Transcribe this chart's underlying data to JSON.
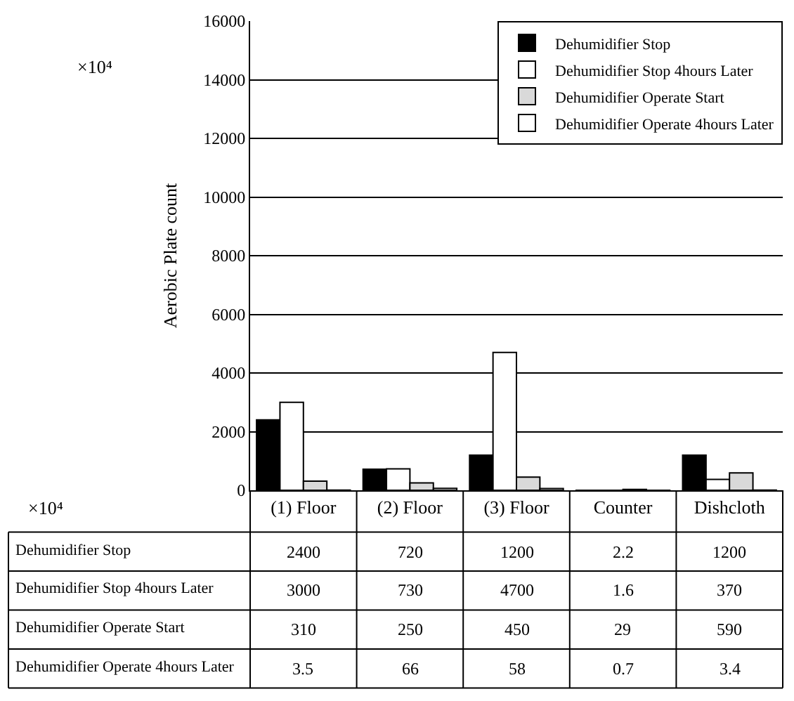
{
  "chart_data": {
    "type": "bar",
    "ylabel": "Aerobic Plate count",
    "annotations": [
      "×10⁴",
      "×10⁴"
    ],
    "categories": [
      "(1) Floor",
      "(2) Floor",
      "(3) Floor",
      "Counter",
      "Dishcloth"
    ],
    "series": [
      {
        "name": "Dehumidifier Stop",
        "color": "#000000",
        "values": [
          2400,
          720,
          1200,
          2.2,
          1200
        ]
      },
      {
        "name": "Dehumidifier Stop 4hours Later",
        "color": "#ffffff",
        "values": [
          3000,
          730,
          4700,
          1.6,
          370
        ]
      },
      {
        "name": "Dehumidifier Operate Start",
        "color": "#d9d9d9",
        "values": [
          310,
          250,
          450,
          29,
          590
        ]
      },
      {
        "name": "Dehumidifier Operate 4hours Later",
        "color": "#ffffff",
        "values": [
          3.5,
          66,
          58,
          0.7,
          3.4
        ]
      }
    ],
    "ylim": [
      0,
      16000
    ],
    "yticks": [
      0,
      2000,
      4000,
      6000,
      8000,
      10000,
      12000,
      14000,
      16000
    ],
    "grid": "y",
    "legend": "top right",
    "data_labels": true
  }
}
